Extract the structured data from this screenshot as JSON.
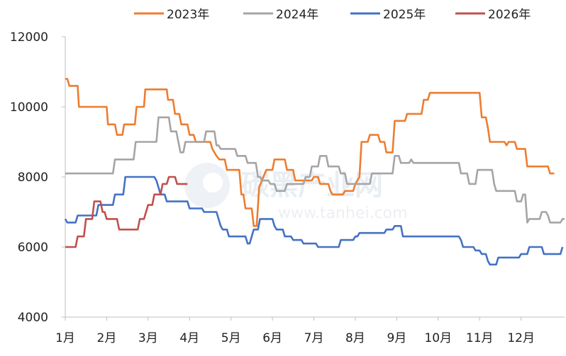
{
  "chart_data": {
    "type": "line",
    "title": "",
    "xlabel": "",
    "ylabel": "",
    "ylim": [
      4000,
      12000
    ],
    "y_ticks": [
      "4000",
      "6000",
      "8000",
      "10000",
      "12000"
    ],
    "x_ticks": [
      "1月",
      "2月",
      "3月",
      "4月",
      "5月",
      "6月",
      "7月",
      "8月",
      "9月",
      "10月",
      "11月",
      "12月"
    ],
    "legend_placement": "top",
    "grid": false,
    "watermark": {
      "main": "碳黑产业网",
      "sub": "www.tanhei.com"
    },
    "series": [
      {
        "name": "2023年",
        "color": "#ED7D31",
        "points": [
          [
            1.0,
            10800
          ],
          [
            1.05,
            10800
          ],
          [
            1.1,
            10600
          ],
          [
            1.3,
            10600
          ],
          [
            1.33,
            10000
          ],
          [
            2.0,
            10000
          ],
          [
            2.03,
            9500
          ],
          [
            2.2,
            9500
          ],
          [
            2.25,
            9200
          ],
          [
            2.38,
            9200
          ],
          [
            2.42,
            9500
          ],
          [
            2.68,
            9500
          ],
          [
            2.72,
            10000
          ],
          [
            2.9,
            10000
          ],
          [
            2.93,
            10500
          ],
          [
            3.45,
            10500
          ],
          [
            3.48,
            10200
          ],
          [
            3.6,
            10200
          ],
          [
            3.65,
            9800
          ],
          [
            3.75,
            9800
          ],
          [
            3.8,
            9500
          ],
          [
            3.95,
            9500
          ],
          [
            4.0,
            9200
          ],
          [
            4.1,
            9200
          ],
          [
            4.15,
            9000
          ],
          [
            4.5,
            9000
          ],
          [
            4.55,
            8800
          ],
          [
            4.65,
            8600
          ],
          [
            4.72,
            8500
          ],
          [
            4.85,
            8500
          ],
          [
            4.9,
            8200
          ],
          [
            5.2,
            8200
          ],
          [
            5.25,
            7500
          ],
          [
            5.3,
            7500
          ],
          [
            5.35,
            7100
          ],
          [
            5.5,
            7100
          ],
          [
            5.55,
            6600
          ],
          [
            5.62,
            6600
          ],
          [
            5.68,
            7700
          ],
          [
            5.78,
            8000
          ],
          [
            5.85,
            8200
          ],
          [
            6.0,
            8200
          ],
          [
            6.05,
            8500
          ],
          [
            6.3,
            8500
          ],
          [
            6.35,
            8200
          ],
          [
            6.5,
            8200
          ],
          [
            6.55,
            7900
          ],
          [
            6.95,
            7900
          ],
          [
            7.0,
            8000
          ],
          [
            7.1,
            8000
          ],
          [
            7.15,
            7800
          ],
          [
            7.35,
            7800
          ],
          [
            7.4,
            7600
          ],
          [
            7.45,
            7500
          ],
          [
            7.7,
            7500
          ],
          [
            7.75,
            7600
          ],
          [
            7.95,
            7600
          ],
          [
            8.0,
            7800
          ],
          [
            8.1,
            8000
          ],
          [
            8.15,
            9000
          ],
          [
            8.3,
            9000
          ],
          [
            8.35,
            9200
          ],
          [
            8.55,
            9200
          ],
          [
            8.6,
            9000
          ],
          [
            8.7,
            9000
          ],
          [
            8.75,
            8700
          ],
          [
            8.9,
            8700
          ],
          [
            8.95,
            9600
          ],
          [
            9.2,
            9600
          ],
          [
            9.25,
            9800
          ],
          [
            9.6,
            9800
          ],
          [
            9.65,
            10200
          ],
          [
            9.75,
            10200
          ],
          [
            9.8,
            10400
          ],
          [
            10.5,
            10400
          ],
          [
            11.0,
            10400
          ],
          [
            11.05,
            9700
          ],
          [
            11.15,
            9700
          ],
          [
            11.2,
            9400
          ],
          [
            11.25,
            9000
          ],
          [
            11.6,
            9000
          ],
          [
            11.65,
            8900
          ],
          [
            11.7,
            9000
          ],
          [
            11.85,
            9000
          ],
          [
            11.9,
            8800
          ],
          [
            12.1,
            8800
          ],
          [
            12.15,
            8300
          ],
          [
            12.65,
            8300
          ],
          [
            12.7,
            8100
          ],
          [
            12.8,
            8100
          ]
        ]
      },
      {
        "name": "2024年",
        "color": "#A5A5A5",
        "points": [
          [
            1.0,
            8100
          ],
          [
            2.15,
            8100
          ],
          [
            2.2,
            8500
          ],
          [
            2.65,
            8500
          ],
          [
            2.7,
            9000
          ],
          [
            3.2,
            9000
          ],
          [
            3.25,
            9700
          ],
          [
            3.5,
            9700
          ],
          [
            3.55,
            9300
          ],
          [
            3.68,
            9300
          ],
          [
            3.73,
            9000
          ],
          [
            3.78,
            8700
          ],
          [
            3.85,
            8700
          ],
          [
            3.9,
            9000
          ],
          [
            4.35,
            9000
          ],
          [
            4.4,
            9300
          ],
          [
            4.6,
            9300
          ],
          [
            4.65,
            8900
          ],
          [
            4.7,
            8900
          ],
          [
            4.75,
            8800
          ],
          [
            5.1,
            8800
          ],
          [
            5.15,
            8600
          ],
          [
            5.35,
            8600
          ],
          [
            5.4,
            8400
          ],
          [
            5.6,
            8400
          ],
          [
            5.65,
            8000
          ],
          [
            5.7,
            8000
          ],
          [
            5.75,
            7900
          ],
          [
            5.9,
            7900
          ],
          [
            5.95,
            7800
          ],
          [
            6.05,
            7800
          ],
          [
            6.1,
            7600
          ],
          [
            6.3,
            7600
          ],
          [
            6.35,
            7800
          ],
          [
            6.75,
            7800
          ],
          [
            6.8,
            8000
          ],
          [
            6.9,
            8000
          ],
          [
            6.95,
            8300
          ],
          [
            7.1,
            8300
          ],
          [
            7.15,
            8600
          ],
          [
            7.3,
            8600
          ],
          [
            7.35,
            8300
          ],
          [
            7.6,
            8300
          ],
          [
            7.65,
            8100
          ],
          [
            7.75,
            8100
          ],
          [
            7.8,
            7800
          ],
          [
            8.35,
            7800
          ],
          [
            8.4,
            8100
          ],
          [
            8.9,
            8100
          ],
          [
            8.95,
            8600
          ],
          [
            9.05,
            8600
          ],
          [
            9.1,
            8400
          ],
          [
            9.3,
            8400
          ],
          [
            9.35,
            8500
          ],
          [
            9.4,
            8400
          ],
          [
            10.5,
            8400
          ],
          [
            10.55,
            8100
          ],
          [
            10.7,
            8100
          ],
          [
            10.75,
            7800
          ],
          [
            10.9,
            7800
          ],
          [
            10.95,
            8200
          ],
          [
            11.3,
            8200
          ],
          [
            11.35,
            7800
          ],
          [
            11.4,
            7600
          ],
          [
            11.85,
            7600
          ],
          [
            11.9,
            7300
          ],
          [
            12.0,
            7300
          ],
          [
            12.05,
            7500
          ],
          [
            12.1,
            7500
          ],
          [
            12.15,
            6700
          ],
          [
            12.2,
            6800
          ],
          [
            12.45,
            6800
          ],
          [
            12.5,
            7000
          ],
          [
            12.6,
            7000
          ],
          [
            12.65,
            6900
          ],
          [
            12.7,
            6700
          ],
          [
            12.95,
            6700
          ],
          [
            13.0,
            6800
          ],
          [
            13.05,
            6800
          ]
        ]
      },
      {
        "name": "2025年",
        "color": "#4472C4",
        "points": [
          [
            1.0,
            6800
          ],
          [
            1.05,
            6700
          ],
          [
            1.25,
            6700
          ],
          [
            1.3,
            6900
          ],
          [
            1.75,
            6900
          ],
          [
            1.8,
            7200
          ],
          [
            2.15,
            7200
          ],
          [
            2.2,
            7500
          ],
          [
            2.4,
            7500
          ],
          [
            2.45,
            8000
          ],
          [
            3.15,
            8000
          ],
          [
            3.2,
            7900
          ],
          [
            3.25,
            7700
          ],
          [
            3.3,
            7500
          ],
          [
            3.4,
            7500
          ],
          [
            3.45,
            7300
          ],
          [
            3.95,
            7300
          ],
          [
            4.0,
            7100
          ],
          [
            4.3,
            7100
          ],
          [
            4.35,
            7000
          ],
          [
            4.65,
            7000
          ],
          [
            4.7,
            6800
          ],
          [
            4.75,
            6600
          ],
          [
            4.8,
            6500
          ],
          [
            4.9,
            6500
          ],
          [
            4.95,
            6300
          ],
          [
            5.35,
            6300
          ],
          [
            5.4,
            6100
          ],
          [
            5.45,
            6100
          ],
          [
            5.5,
            6300
          ],
          [
            5.55,
            6500
          ],
          [
            5.65,
            6500
          ],
          [
            5.7,
            6800
          ],
          [
            6.0,
            6800
          ],
          [
            6.05,
            6600
          ],
          [
            6.1,
            6500
          ],
          [
            6.25,
            6500
          ],
          [
            6.3,
            6300
          ],
          [
            6.45,
            6300
          ],
          [
            6.5,
            6200
          ],
          [
            6.7,
            6200
          ],
          [
            6.75,
            6100
          ],
          [
            7.05,
            6100
          ],
          [
            7.1,
            6000
          ],
          [
            7.6,
            6000
          ],
          [
            7.65,
            6200
          ],
          [
            7.95,
            6200
          ],
          [
            8.0,
            6300
          ],
          [
            8.05,
            6300
          ],
          [
            8.1,
            6400
          ],
          [
            8.7,
            6400
          ],
          [
            8.75,
            6500
          ],
          [
            8.9,
            6500
          ],
          [
            8.95,
            6600
          ],
          [
            9.1,
            6600
          ],
          [
            9.15,
            6300
          ],
          [
            10.5,
            6300
          ],
          [
            10.55,
            6200
          ],
          [
            10.6,
            6000
          ],
          [
            10.85,
            6000
          ],
          [
            10.9,
            5900
          ],
          [
            11.0,
            5900
          ],
          [
            11.05,
            5800
          ],
          [
            11.15,
            5800
          ],
          [
            11.2,
            5600
          ],
          [
            11.25,
            5500
          ],
          [
            11.4,
            5500
          ],
          [
            11.45,
            5700
          ],
          [
            11.95,
            5700
          ],
          [
            12.0,
            5800
          ],
          [
            12.15,
            5800
          ],
          [
            12.2,
            6000
          ],
          [
            12.5,
            6000
          ],
          [
            12.55,
            5800
          ],
          [
            12.95,
            5800
          ],
          [
            13.0,
            6000
          ]
        ]
      },
      {
        "name": "2026年",
        "color": "#C0504D",
        "points": [
          [
            1.0,
            6000
          ],
          [
            1.25,
            6000
          ],
          [
            1.3,
            6300
          ],
          [
            1.45,
            6300
          ],
          [
            1.5,
            6800
          ],
          [
            1.65,
            6800
          ],
          [
            1.7,
            7300
          ],
          [
            1.85,
            7300
          ],
          [
            1.9,
            7000
          ],
          [
            1.95,
            7000
          ],
          [
            2.0,
            6800
          ],
          [
            2.25,
            6800
          ],
          [
            2.3,
            6500
          ],
          [
            2.75,
            6500
          ],
          [
            2.8,
            6800
          ],
          [
            2.9,
            6800
          ],
          [
            2.95,
            7000
          ],
          [
            3.0,
            7200
          ],
          [
            3.1,
            7200
          ],
          [
            3.15,
            7500
          ],
          [
            3.3,
            7500
          ],
          [
            3.35,
            7800
          ],
          [
            3.45,
            7800
          ],
          [
            3.5,
            8000
          ],
          [
            3.65,
            8000
          ],
          [
            3.7,
            7800
          ],
          [
            3.95,
            7800
          ]
        ]
      }
    ]
  }
}
